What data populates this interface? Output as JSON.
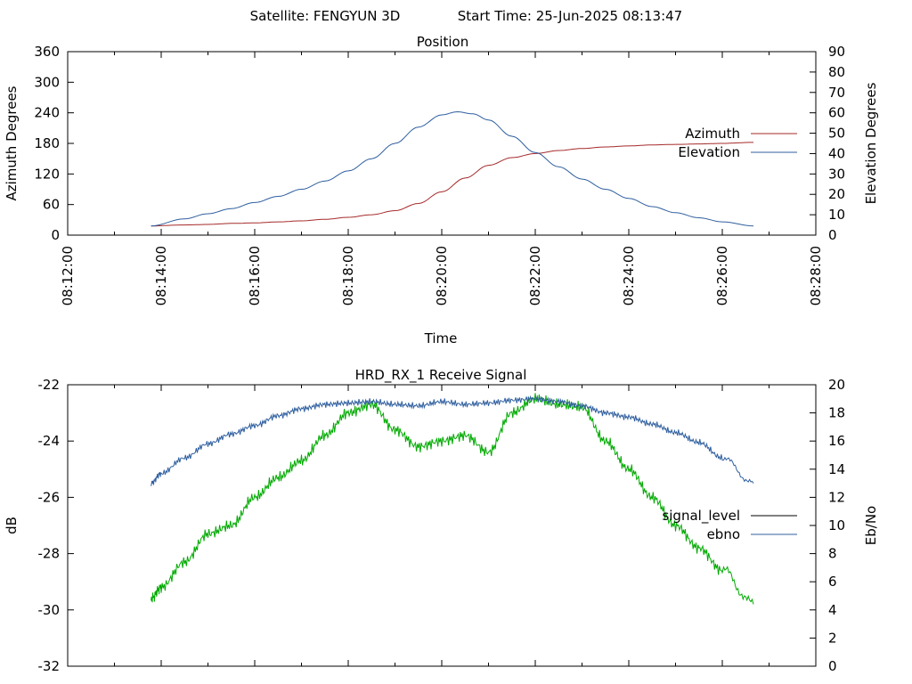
{
  "header": {
    "satellite": "Satellite: FENGYUN 3D",
    "start_time": "Start Time: 25-Jun-2025 08:13:47"
  },
  "chart_data": [
    {
      "type": "line",
      "title": "Position",
      "xlabel": "Time",
      "ylabel": "Azimuth Degrees",
      "y2label": "Elevation Degrees",
      "xlim": [
        "08:12:00",
        "08:28:00"
      ],
      "ylim": [
        0,
        360
      ],
      "y2lim": [
        0,
        90
      ],
      "x_tick_labels": [
        "08:12:00",
        "08:14:00",
        "08:16:00",
        "08:18:00",
        "08:20:00",
        "08:22:00",
        "08:24:00",
        "08:26:00",
        "08:28:00"
      ],
      "y_tick_labels": [
        "0",
        "60",
        "120",
        "180",
        "240",
        "300",
        "360"
      ],
      "y2_tick_labels": [
        "0",
        "10",
        "20",
        "30",
        "40",
        "50",
        "60",
        "70",
        "80",
        "90"
      ],
      "legend_position": "right",
      "series": [
        {
          "name": "Azimuth",
          "axis": "left",
          "color": "#a52a2a",
          "x": [
            "08:13:47",
            "08:14:30",
            "08:15:00",
            "08:15:30",
            "08:16:00",
            "08:16:30",
            "08:17:00",
            "08:17:30",
            "08:18:00",
            "08:18:30",
            "08:19:00",
            "08:19:30",
            "08:20:00",
            "08:20:30",
            "08:21:00",
            "08:21:30",
            "08:22:00",
            "08:22:30",
            "08:23:00",
            "08:23:30",
            "08:24:00",
            "08:24:30",
            "08:25:00",
            "08:25:30",
            "08:26:00",
            "08:26:40"
          ],
          "values": [
            18,
            20,
            21,
            23,
            24,
            26,
            28,
            31,
            35,
            40,
            48,
            62,
            85,
            112,
            137,
            152,
            160,
            166,
            170,
            173,
            175,
            177,
            178,
            179,
            180,
            182
          ]
        },
        {
          "name": "Elevation",
          "axis": "right",
          "color": "#2f5f9f",
          "x": [
            "08:13:47",
            "08:14:30",
            "08:15:00",
            "08:15:30",
            "08:16:00",
            "08:16:30",
            "08:17:00",
            "08:17:30",
            "08:18:00",
            "08:18:30",
            "08:19:00",
            "08:19:30",
            "08:20:00",
            "08:20:20",
            "08:20:40",
            "08:21:00",
            "08:21:30",
            "08:22:00",
            "08:22:30",
            "08:23:00",
            "08:23:30",
            "08:24:00",
            "08:24:30",
            "08:25:00",
            "08:25:30",
            "08:26:00",
            "08:26:40"
          ],
          "values": [
            4.5,
            8,
            10.5,
            13,
            16,
            19,
            22.5,
            26.5,
            31.5,
            37.5,
            45,
            53,
            59,
            60.5,
            59.5,
            56.5,
            48.5,
            40.5,
            33.5,
            27.5,
            22.5,
            18,
            14,
            11,
            8.5,
            6.5,
            4.5
          ]
        }
      ]
    },
    {
      "type": "line",
      "title": "HRD_RX_1 Receive Signal",
      "ylabel": "dB",
      "y2label": "Eb/No",
      "xlim": [
        "08:12:00",
        "08:28:00"
      ],
      "ylim": [
        -32,
        -22
      ],
      "y2lim": [
        0,
        20
      ],
      "y_tick_labels": [
        "-32",
        "-30",
        "-28",
        "-26",
        "-24",
        "-22"
      ],
      "y2_tick_labels": [
        "0",
        "2",
        "4",
        "6",
        "8",
        "10",
        "12",
        "14",
        "16",
        "18",
        "20"
      ],
      "legend_position": "right",
      "series": [
        {
          "name": "signal_level",
          "axis": "left",
          "color": "#00aa00",
          "legend_color": "#000000",
          "x": [
            "08:13:47",
            "08:14:00",
            "08:14:30",
            "08:15:00",
            "08:15:30",
            "08:16:00",
            "08:16:30",
            "08:17:00",
            "08:17:30",
            "08:18:00",
            "08:18:30",
            "08:19:00",
            "08:19:30",
            "08:20:00",
            "08:20:30",
            "08:21:00",
            "08:21:30",
            "08:22:00",
            "08:22:30",
            "08:23:00",
            "08:23:30",
            "08:24:00",
            "08:24:30",
            "08:25:00",
            "08:25:30",
            "08:26:00",
            "08:26:40"
          ],
          "values": [
            -29.6,
            -29.2,
            -28.3,
            -27.3,
            -27.0,
            -26.0,
            -25.3,
            -24.7,
            -23.8,
            -23.0,
            -22.7,
            -23.6,
            -24.2,
            -24.0,
            -23.8,
            -24.4,
            -23.0,
            -22.5,
            -22.7,
            -22.8,
            -24.0,
            -25.0,
            -26.0,
            -27.0,
            -27.8,
            -28.6,
            -29.8
          ]
        },
        {
          "name": "ebno",
          "axis": "right",
          "color": "#2f5f9f",
          "x": [
            "08:13:47",
            "08:14:00",
            "08:14:30",
            "08:15:00",
            "08:15:30",
            "08:16:00",
            "08:16:30",
            "08:17:00",
            "08:17:30",
            "08:18:00",
            "08:18:30",
            "08:19:00",
            "08:19:30",
            "08:20:00",
            "08:20:30",
            "08:21:00",
            "08:21:30",
            "08:22:00",
            "08:22:30",
            "08:23:00",
            "08:23:30",
            "08:24:00",
            "08:24:30",
            "08:25:00",
            "08:25:30",
            "08:26:00",
            "08:26:40"
          ],
          "values": [
            13.0,
            13.7,
            14.8,
            15.8,
            16.5,
            17.1,
            17.8,
            18.3,
            18.6,
            18.7,
            18.8,
            18.6,
            18.5,
            18.8,
            18.6,
            18.7,
            18.9,
            19.0,
            18.8,
            18.5,
            18.0,
            17.7,
            17.2,
            16.6,
            15.9,
            14.8,
            13.0
          ]
        }
      ]
    }
  ]
}
